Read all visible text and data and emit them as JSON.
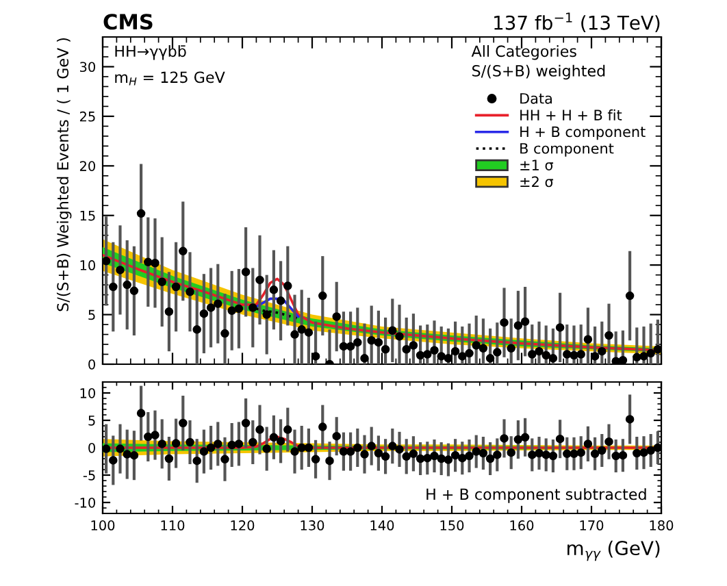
{
  "chart_data": [
    {
      "type": "scatter",
      "title": "CMS",
      "subtitle": "137 fb$^{−1}$ (13 TeV)",
      "ylabel": "S/(S+B) Weighted Events / ( 1 GeV )",
      "annotations": [
        "HH→γγbb̄",
        "m$_{H}$ = 125 GeV",
        "All Categories",
        "S/(S+B) weighted"
      ],
      "xlim": [
        100,
        180
      ],
      "ylim": [
        0,
        33
      ],
      "yticks": [
        0,
        5,
        10,
        15,
        20,
        25,
        30
      ],
      "tick_labels": "y",
      "legend": "top right",
      "series": [
        {
          "name": "±2 σ",
          "type": "area",
          "color": "#f5c400",
          "x": [
            100,
            110,
            120,
            130,
            140,
            150,
            160,
            170,
            180
          ],
          "values": [
            null,
            null,
            null,
            null,
            null,
            null,
            null,
            null,
            null
          ],
          "lower": [
            9.4,
            7.1,
            5.0,
            3.4,
            2.6,
            2.0,
            1.6,
            1.3,
            1.0
          ],
          "upper": [
            12.6,
            9.5,
            7.0,
            5.0,
            3.8,
            3.2,
            2.6,
            2.1,
            1.8
          ]
        },
        {
          "name": "±1 σ",
          "type": "area",
          "color": "#22cc22",
          "x": [
            100,
            110,
            120,
            130,
            140,
            150,
            160,
            170,
            180
          ],
          "values": [
            null,
            null,
            null,
            null,
            null,
            null,
            null,
            null,
            null
          ],
          "lower": [
            10.2,
            7.7,
            5.5,
            3.8,
            2.9,
            2.3,
            1.8,
            1.5,
            1.2
          ],
          "upper": [
            11.8,
            8.9,
            6.5,
            4.6,
            3.5,
            2.9,
            2.4,
            1.9,
            1.6
          ]
        },
        {
          "name": "HH + H + B fit",
          "type": "line",
          "line_style": "solid",
          "color": "#e8202a",
          "x": [
            100,
            105,
            110,
            115,
            120,
            122,
            123,
            124,
            125,
            126,
            127,
            128,
            130,
            135,
            140,
            150,
            160,
            170,
            180
          ],
          "values": [
            11.0,
            9.6,
            8.3,
            7.2,
            6.0,
            6.0,
            7.0,
            8.2,
            8.6,
            8.0,
            6.5,
            5.0,
            4.2,
            3.6,
            3.2,
            2.6,
            2.1,
            1.7,
            1.4
          ]
        },
        {
          "name": "H + B component",
          "type": "line",
          "line_style": "solid",
          "color": "#2a2ae8",
          "x": [
            122,
            123,
            124,
            125,
            126,
            127,
            128
          ],
          "values": [
            5.8,
            6.2,
            6.6,
            6.6,
            6.4,
            5.6,
            4.8
          ]
        },
        {
          "name": "B component",
          "type": "line",
          "line_style": "dotted",
          "color": "#000000",
          "x": [
            122,
            123,
            124,
            125,
            126,
            127,
            128
          ],
          "values": [
            5.6,
            5.4,
            5.3,
            5.2,
            5.0,
            4.8,
            4.6
          ]
        },
        {
          "name": "Data",
          "type": "scatter",
          "marker": "circle",
          "color": "#000000",
          "x": [
            100.5,
            101.5,
            102.5,
            103.5,
            104.5,
            105.5,
            106.5,
            107.5,
            108.5,
            109.5,
            110.5,
            111.5,
            112.5,
            113.5,
            114.5,
            115.5,
            116.5,
            117.5,
            118.5,
            119.5,
            120.5,
            121.5,
            122.5,
            123.5,
            124.5,
            125.5,
            126.5,
            127.5,
            128.5,
            129.5,
            130.5,
            131.5,
            132.5,
            133.5,
            134.5,
            135.5,
            136.5,
            137.5,
            138.5,
            139.5,
            140.5,
            141.5,
            142.5,
            143.5,
            144.5,
            145.5,
            146.5,
            147.5,
            148.5,
            149.5,
            150.5,
            151.5,
            152.5,
            153.5,
            154.5,
            155.5,
            156.5,
            157.5,
            158.5,
            159.5,
            160.5,
            161.5,
            162.5,
            163.5,
            164.5,
            165.5,
            166.5,
            167.5,
            168.5,
            169.5,
            170.5,
            171.5,
            172.5,
            173.5,
            174.5,
            175.5,
            176.5,
            177.5,
            178.5,
            179.5
          ],
          "values": [
            10.4,
            7.8,
            9.5,
            8.0,
            7.4,
            15.2,
            10.3,
            10.2,
            8.3,
            5.3,
            7.8,
            11.4,
            7.3,
            3.5,
            5.1,
            5.7,
            6.1,
            3.1,
            5.4,
            5.6,
            9.3,
            5.7,
            8.5,
            5.0,
            7.5,
            6.4,
            7.9,
            3.0,
            3.5,
            3.2,
            0.8,
            6.9,
            0.0,
            4.8,
            1.8,
            1.8,
            2.2,
            0.6,
            2.4,
            2.2,
            1.5,
            3.4,
            2.8,
            1.5,
            1.9,
            0.9,
            1.0,
            1.4,
            0.8,
            0.6,
            1.3,
            0.8,
            1.1,
            1.9,
            1.6,
            0.6,
            1.2,
            4.2,
            1.6,
            3.9,
            4.3,
            1.0,
            1.3,
            0.9,
            0.6,
            3.7,
            1.0,
            0.9,
            1.0,
            2.5,
            0.8,
            1.3,
            2.9,
            0.3,
            0.4,
            6.9,
            0.7,
            0.8,
            1.1,
            1.5
          ],
          "errors": [
            4.5,
            4.5,
            4.5,
            4.5,
            4.5,
            5.0,
            4.5,
            4.5,
            4.5,
            4.0,
            4.5,
            5.0,
            4.0,
            4.0,
            4.0,
            4.0,
            4.0,
            4.0,
            4.0,
            4.0,
            4.5,
            4.0,
            4.5,
            4.0,
            4.0,
            4.0,
            4.0,
            4.0,
            4.0,
            3.5,
            3.5,
            4.0,
            3.5,
            3.5,
            3.5,
            3.5,
            3.5,
            3.5,
            3.5,
            3.2,
            3.2,
            3.2,
            3.2,
            3.2,
            3.2,
            3.0,
            3.0,
            3.0,
            3.0,
            3.0,
            3.0,
            3.0,
            3.0,
            3.0,
            3.0,
            3.0,
            3.0,
            3.5,
            3.0,
            3.5,
            3.5,
            3.0,
            3.0,
            3.0,
            3.0,
            3.5,
            3.0,
            3.0,
            3.0,
            3.2,
            3.0,
            3.0,
            3.2,
            3.0,
            3.0,
            4.5,
            3.0,
            3.0,
            3.0,
            3.0
          ]
        }
      ]
    },
    {
      "type": "scatter",
      "xlabel": "m$_{γγ}$ (GeV)",
      "annotations": [
        "H + B component subtracted"
      ],
      "xlim": [
        100,
        180
      ],
      "xticks": [
        100,
        110,
        120,
        130,
        140,
        150,
        160,
        170,
        180
      ],
      "ylim": [
        -12,
        12
      ],
      "yticks": [
        -10,
        -5,
        0,
        5,
        10
      ],
      "series": [
        {
          "type": "area",
          "color": "#f5c400",
          "x": [
            100,
            110,
            120,
            130,
            140,
            150,
            160,
            170,
            180
          ],
          "values": [
            null,
            null,
            null,
            null,
            null,
            null,
            null,
            null,
            null
          ],
          "lower": [
            -1.6,
            -1.2,
            -1.0,
            -0.8,
            -0.6,
            -0.6,
            -0.5,
            -0.4,
            -0.4
          ],
          "upper": [
            1.6,
            1.2,
            1.0,
            0.8,
            0.6,
            0.6,
            0.5,
            0.4,
            0.4
          ]
        },
        {
          "type": "area",
          "color": "#22cc22",
          "x": [
            100,
            110,
            120,
            130,
            140,
            150,
            160,
            170,
            180
          ],
          "values": [
            null,
            null,
            null,
            null,
            null,
            null,
            null,
            null,
            null
          ],
          "lower": [
            -0.8,
            -0.6,
            -0.5,
            -0.4,
            -0.3,
            -0.3,
            -0.3,
            -0.2,
            -0.2
          ],
          "upper": [
            0.8,
            0.6,
            0.5,
            0.4,
            0.3,
            0.3,
            0.3,
            0.2,
            0.2
          ]
        },
        {
          "type": "line",
          "line_style": "solid",
          "color": "#e8202a",
          "x": [
            100,
            120,
            122,
            123,
            124,
            125,
            126,
            127,
            128,
            130,
            180
          ],
          "values": [
            0,
            0,
            0.2,
            0.8,
            1.6,
            2.0,
            1.6,
            1.0,
            0.3,
            0,
            0
          ]
        },
        {
          "type": "scatter",
          "marker": "circle",
          "color": "#000000",
          "x": [
            100.5,
            101.5,
            102.5,
            103.5,
            104.5,
            105.5,
            106.5,
            107.5,
            108.5,
            109.5,
            110.5,
            111.5,
            112.5,
            113.5,
            114.5,
            115.5,
            116.5,
            117.5,
            118.5,
            119.5,
            120.5,
            121.5,
            122.5,
            123.5,
            124.5,
            125.5,
            126.5,
            127.5,
            128.5,
            129.5,
            130.5,
            131.5,
            132.5,
            133.5,
            134.5,
            135.5,
            136.5,
            137.5,
            138.5,
            139.5,
            140.5,
            141.5,
            142.5,
            143.5,
            144.5,
            145.5,
            146.5,
            147.5,
            148.5,
            149.5,
            150.5,
            151.5,
            152.5,
            153.5,
            154.5,
            155.5,
            156.5,
            157.5,
            158.5,
            159.5,
            160.5,
            161.5,
            162.5,
            163.5,
            164.5,
            165.5,
            166.5,
            167.5,
            168.5,
            169.5,
            170.5,
            171.5,
            172.5,
            173.5,
            174.5,
            175.5,
            176.5,
            177.5,
            178.5,
            179.5
          ],
          "values": [
            -0.2,
            -2.3,
            -0.2,
            -1.2,
            -1.4,
            6.3,
            2.0,
            2.3,
            0.7,
            -2.0,
            0.8,
            4.5,
            1.0,
            -2.4,
            -0.7,
            0.0,
            0.7,
            -2.1,
            0.5,
            0.7,
            4.5,
            1.0,
            3.3,
            -0.2,
            1.9,
            1.2,
            3.3,
            -0.7,
            0.0,
            0.0,
            -2.1,
            3.8,
            -2.4,
            2.1,
            -0.7,
            -0.7,
            0.0,
            -1.2,
            0.3,
            -1.0,
            -1.6,
            0.3,
            -0.3,
            -1.6,
            -1.1,
            -2.0,
            -1.9,
            -1.5,
            -2.0,
            -2.2,
            -1.4,
            -1.9,
            -1.5,
            -0.7,
            -1.0,
            -2.0,
            -1.3,
            1.7,
            -0.9,
            1.5,
            1.9,
            -1.3,
            -1.0,
            -1.3,
            -1.5,
            1.6,
            -1.1,
            -1.1,
            -0.9,
            0.7,
            -1.1,
            -0.5,
            1.1,
            -1.5,
            -1.4,
            5.2,
            -1.0,
            -0.9,
            -0.5,
            0.0
          ],
          "errors": [
            4.5,
            4.5,
            4.5,
            4.5,
            4.5,
            5.0,
            4.5,
            4.5,
            4.5,
            4.0,
            4.5,
            5.0,
            4.0,
            4.0,
            4.0,
            4.0,
            4.0,
            4.0,
            4.0,
            4.0,
            4.5,
            4.0,
            4.5,
            4.0,
            4.0,
            4.0,
            4.0,
            4.0,
            4.0,
            3.5,
            3.5,
            4.0,
            3.5,
            3.5,
            3.5,
            3.5,
            3.5,
            3.5,
            3.5,
            3.2,
            3.2,
            3.2,
            3.2,
            3.2,
            3.2,
            3.0,
            3.0,
            3.0,
            3.0,
            3.0,
            3.0,
            3.0,
            3.0,
            3.0,
            3.0,
            3.0,
            3.0,
            3.5,
            3.0,
            3.5,
            3.5,
            3.0,
            3.0,
            3.0,
            3.0,
            3.5,
            3.0,
            3.0,
            3.0,
            3.2,
            3.0,
            3.0,
            3.2,
            3.0,
            3.0,
            4.5,
            3.0,
            3.0,
            3.0,
            3.0
          ]
        }
      ]
    }
  ]
}
